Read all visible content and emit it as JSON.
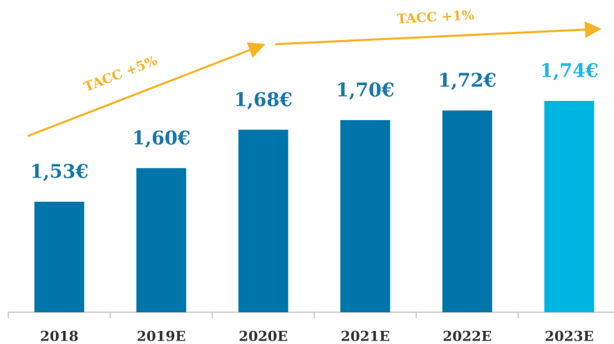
{
  "chart_data": {
    "type": "bar",
    "categories": [
      "2018",
      "2019E",
      "2020E",
      "2021E",
      "2022E",
      "2023E"
    ],
    "values": [
      1.53,
      1.6,
      1.68,
      1.7,
      1.72,
      1.74
    ],
    "value_labels": [
      "1,53€",
      "1,60€",
      "1,68€",
      "1,70€",
      "1,72€",
      "1,74€"
    ],
    "colors": [
      "#0075a9",
      "#0075a9",
      "#0075a9",
      "#0075a9",
      "#0075a9",
      "#00b5e2"
    ],
    "label_colors": [
      "#1877aa",
      "#1877aa",
      "#1877aa",
      "#1877aa",
      "#1877aa",
      "#1db6e0"
    ],
    "ylim": [
      1.3,
      1.95
    ],
    "annotations": [
      "TACC +5%",
      "TACC +1%"
    ]
  }
}
